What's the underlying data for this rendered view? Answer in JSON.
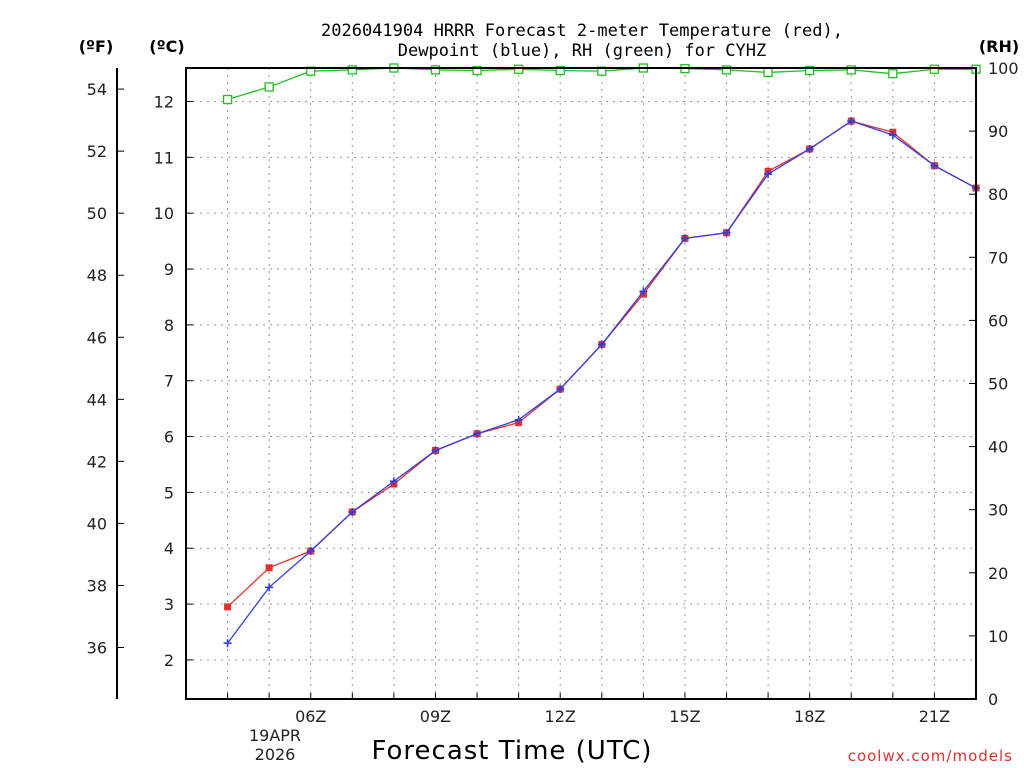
{
  "chart_data": {
    "type": "line",
    "title_line1": "2026041904 HRRR Forecast 2-meter Temperature (red),",
    "title_line2": "Dewpoint (blue), RH (green) for CYHZ",
    "unit_f": "(ºF)",
    "unit_c": "(ºC)",
    "unit_rh": "(RH)",
    "xlabel": "Forecast Time (UTC)",
    "date_label_line1": "19APR",
    "date_label_line2": "2026",
    "credit": "coolwx.com/models",
    "x_range": [
      3,
      22
    ],
    "y_celsius_range": [
      1.3,
      12.6
    ],
    "y_fahrenheit_ticks": [
      36,
      38,
      40,
      42,
      44,
      46,
      48,
      50,
      52,
      54
    ],
    "y_celsius_ticks": [
      2,
      3,
      4,
      5,
      6,
      7,
      8,
      9,
      10,
      11,
      12
    ],
    "y_rh_range": [
      0,
      100
    ],
    "y_rh_ticks": [
      0,
      10,
      20,
      30,
      40,
      50,
      60,
      70,
      80,
      90,
      100
    ],
    "x_ticks": [
      {
        "hour": 6,
        "label": "06Z"
      },
      {
        "hour": 9,
        "label": "09Z"
      },
      {
        "hour": 12,
        "label": "12Z"
      },
      {
        "hour": 15,
        "label": "15Z"
      },
      {
        "hour": 18,
        "label": "18Z"
      },
      {
        "hour": 21,
        "label": "21Z"
      }
    ],
    "x_hours": [
      4,
      5,
      6,
      7,
      8,
      9,
      10,
      11,
      12,
      13,
      14,
      15,
      16,
      17,
      18,
      19,
      20,
      21,
      22
    ],
    "series": [
      {
        "name": "Temperature",
        "color": "#e83030",
        "marker": "square",
        "values": [
          2.95,
          3.65,
          3.95,
          4.65,
          5.15,
          5.75,
          6.05,
          6.25,
          6.85,
          7.65,
          8.55,
          9.55,
          9.65,
          10.75,
          11.15,
          11.65,
          11.45,
          10.85,
          10.45
        ]
      },
      {
        "name": "Dewpoint",
        "color": "#3040e0",
        "marker": "plus",
        "values": [
          2.3,
          3.3,
          3.95,
          4.65,
          5.2,
          5.75,
          6.05,
          6.3,
          6.85,
          7.65,
          8.6,
          9.55,
          9.65,
          10.7,
          11.15,
          11.65,
          11.4,
          10.85,
          10.45
        ]
      },
      {
        "name": "RH",
        "color": "#20c020",
        "marker": "open-square",
        "axis": "rh",
        "values": [
          95,
          97,
          99.5,
          99.7,
          100,
          99.7,
          99.6,
          99.8,
          99.6,
          99.5,
          100,
          99.9,
          99.7,
          99.3,
          99.6,
          99.7,
          99.1,
          99.8,
          99.8
        ]
      }
    ]
  }
}
